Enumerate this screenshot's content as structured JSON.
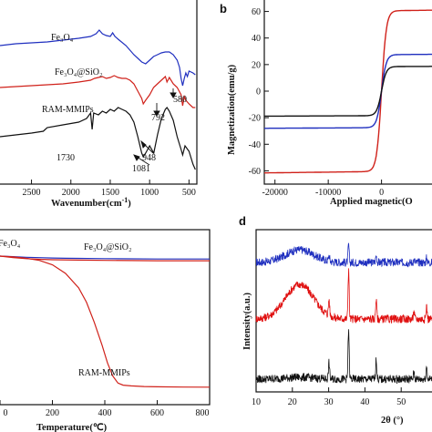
{
  "chart_data": [
    {
      "panel": "a",
      "type": "line",
      "xlabel": "Wavenumber(cm⁻¹)",
      "ylabel": "",
      "xlim": [
        2900,
        400
      ],
      "xticks": [
        2500,
        2000,
        1500,
        1000,
        500
      ],
      "series": [
        {
          "name": "Fe₃O₄",
          "color": "#1f2fbf",
          "x": [
            2900,
            2700,
            2500,
            2300,
            2100,
            1900,
            1750,
            1680,
            1640,
            1600,
            1550,
            1500,
            1470,
            1440,
            1400,
            1300,
            1200,
            1100,
            1050,
            1000,
            950,
            900,
            850,
            800,
            750,
            700,
            650,
            620,
            600,
            580,
            560,
            540,
            520,
            500,
            450,
            420
          ],
          "y": [
            50,
            48,
            47,
            46,
            44,
            42,
            40,
            37,
            33,
            37,
            39,
            40,
            36,
            40,
            43,
            50,
            60,
            68,
            70,
            66,
            62,
            60,
            58,
            57,
            57,
            60,
            66,
            74,
            86,
            94,
            86,
            80,
            84,
            78,
            80,
            82
          ]
        },
        {
          "name": "Fe₃O₄@SiO₂",
          "color": "#d0211a",
          "x": [
            2900,
            2700,
            2500,
            2300,
            2100,
            1900,
            1750,
            1700,
            1650,
            1600,
            1550,
            1500,
            1450,
            1400,
            1350,
            1300,
            1250,
            1200,
            1150,
            1100,
            1080,
            1050,
            1000,
            950,
            900,
            850,
            800,
            792,
            780,
            750,
            700,
            650,
            600,
            580,
            560,
            540,
            500,
            450,
            420
          ],
          "y": [
            96,
            95,
            94,
            93,
            92,
            90,
            88,
            86,
            85,
            84,
            86,
            85,
            83,
            85,
            86,
            86,
            88,
            92,
            100,
            108,
            114,
            110,
            104,
            96,
            92,
            88,
            84,
            86,
            90,
            85,
            92,
            96,
            104,
            116,
            106,
            110,
            114,
            118,
            118
          ]
        },
        {
          "name": "RAM-MMIPs",
          "color": "#111111",
          "x": [
            2900,
            2700,
            2500,
            2350,
            2300,
            2100,
            1900,
            1800,
            1750,
            1730,
            1710,
            1650,
            1600,
            1550,
            1500,
            1450,
            1400,
            1350,
            1300,
            1250,
            1200,
            1150,
            1100,
            1081,
            1050,
            1000,
            948,
            900,
            850,
            800,
            780,
            750,
            700,
            650,
            600,
            580,
            550,
            500,
            450,
            420
          ],
          "y": [
            150,
            148,
            146,
            144,
            140,
            137,
            134,
            130,
            124,
            142,
            124,
            126,
            122,
            124,
            120,
            122,
            118,
            120,
            122,
            126,
            134,
            150,
            168,
            172,
            168,
            160,
            168,
            148,
            130,
            120,
            118,
            122,
            132,
            150,
            164,
            170,
            160,
            166,
            180,
            186
          ]
        }
      ],
      "annotations": [
        "1730",
        "1081",
        "948",
        "792",
        "580"
      ]
    },
    {
      "panel": "b",
      "type": "line",
      "xlabel": "Applied magnetic(O",
      "ylabel": "Magnetization(emu/g)",
      "xlim": [
        -22000,
        10500
      ],
      "ylim": [
        -70,
        70
      ],
      "xticks": [
        -20000,
        -10000,
        0
      ],
      "yticks": [
        -60,
        -40,
        -20,
        0,
        20,
        40,
        60
      ],
      "series": [
        {
          "name": "",
          "color": "#d0211a",
          "ms": 60.5,
          "h0": 900
        },
        {
          "name": "",
          "color": "#1f2fbf",
          "ms": 27.5,
          "h0": 900
        },
        {
          "name": "",
          "color": "#111111",
          "ms": 18.5,
          "h0": 900
        }
      ]
    },
    {
      "panel": "c",
      "type": "line",
      "xlabel": "Temperature(℃)",
      "ylabel": "",
      "xlim": [
        0,
        800
      ],
      "xticks": [
        0,
        200,
        400,
        600,
        800
      ],
      "series": [
        {
          "name": "Fe₃O₄",
          "color": "#1f2fbf",
          "x": [
            0,
            50,
            100,
            150,
            200,
            250,
            300,
            400,
            500,
            600,
            700,
            800
          ],
          "y": [
            100,
            99.6,
            99.2,
            98.9,
            98.7,
            98.5,
            98.4,
            98.2,
            98.1,
            98.0,
            98.0,
            98.0
          ]
        },
        {
          "name": "Fe₃O₄@SiO₂",
          "color": "#d0211a",
          "x": [
            0,
            50,
            100,
            150,
            200,
            300,
            400,
            500,
            600,
            700,
            800
          ],
          "y": [
            100,
            99,
            98.2,
            97.8,
            97.5,
            97.2,
            97.0,
            96.9,
            96.8,
            96.8,
            96.8
          ]
        },
        {
          "name": "RAM-MMIPs",
          "color": "#d0211a",
          "x": [
            0,
            50,
            100,
            150,
            200,
            250,
            300,
            330,
            360,
            390,
            410,
            430,
            450,
            470,
            500,
            550,
            600,
            700,
            800
          ],
          "y": [
            100,
            99.5,
            98.5,
            97,
            94,
            88,
            78,
            68,
            54,
            38,
            26,
            17,
            12,
            10.5,
            10,
            9.6,
            9.4,
            9.2,
            9.1
          ]
        }
      ]
    },
    {
      "panel": "d",
      "type": "line",
      "xlabel": "2θ (°)",
      "ylabel": "Intensity(a.u.)",
      "xlim": [
        10,
        60
      ],
      "xticks": [
        10,
        20,
        30,
        40,
        50
      ],
      "series": [
        {
          "name": "",
          "color": "#1f2fbf",
          "offset": 140,
          "amorph": 14,
          "scale": 0.35
        },
        {
          "name": "",
          "color": "#e01010",
          "offset": 78,
          "amorph": 38,
          "scale": 1.0
        },
        {
          "name": "",
          "color": "#111111",
          "offset": 12,
          "amorph": 2,
          "scale": 1.0
        }
      ],
      "peaks": [
        30.1,
        35.5,
        43.1,
        53.5,
        57.0,
        62.6
      ]
    }
  ],
  "panel_labels": {
    "b": "b",
    "d": "d"
  },
  "labels": {
    "a_fe3o4": "Fe₃O₄",
    "a_fe3o4sio2": "Fe₃O₄@SiO₂",
    "a_ram": "RAM-MMIPs",
    "a_1730": "1730",
    "a_1081": "1081",
    "a_948": "948",
    "a_792": "792",
    "a_580": "580",
    "a_xlabel": "Wavenumber(cm",
    "a_xlabel_sup": "-1",
    "a_xlabel_end": ")",
    "b_ylabel": "Magnetization(emu/g)",
    "b_xlabel": "Applied magnetic(O",
    "c_fe3o4": "Fe₃O₄",
    "c_fe3o4sio2": "Fe₃O₄@SiO₂",
    "c_ram": "RAM-MMIPs",
    "c_xlabel": "Temperature(℃)",
    "d_ylabel": "Intensity(a.u.)",
    "d_xlabel": "2θ (°)"
  }
}
